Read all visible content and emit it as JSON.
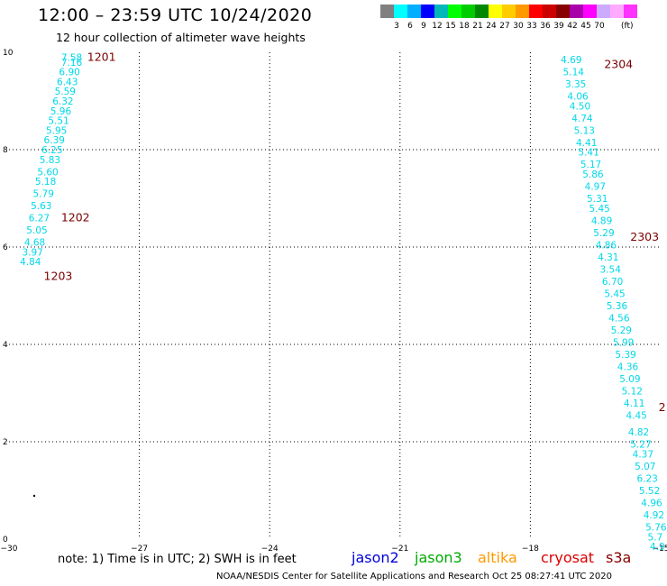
{
  "title": "12:00 – 23:59 UTC 10/24/2020",
  "subtitle": "12 hour collection of altimeter wave heights",
  "colorbar": {
    "unit": "(ft)",
    "colors": [
      "#808080",
      "#00ffff",
      "#00b0ff",
      "#0000ff",
      "#00b8b8",
      "#00ff00",
      "#00cc00",
      "#008800",
      "#ffff00",
      "#ffcc00",
      "#ff9900",
      "#ff0000",
      "#cc0000",
      "#880000",
      "#aa00aa",
      "#ff00ff",
      "#ccaaff",
      "#ffaaff",
      "#ff33ff"
    ],
    "labels": [
      "3",
      "6",
      "9",
      "12",
      "15",
      "18",
      "21",
      "24",
      "27",
      "30",
      "33",
      "36",
      "39",
      "42",
      "45",
      "70"
    ]
  },
  "chart_data": {
    "type": "scatter",
    "title": "12:00 – 23:59 UTC 10/24/2020",
    "subtitle": "12 hour collection of altimeter wave heights",
    "xlim": [
      -30,
      -15
    ],
    "ylim": [
      0,
      10
    ],
    "x_ticks": [
      "−30",
      "−27",
      "−24",
      "−21",
      "−18",
      "−15"
    ],
    "y_ticks": [
      "0",
      "2",
      "4",
      "6",
      "8",
      "10"
    ],
    "grid": true,
    "track_labels": [
      {
        "text": "1201",
        "x": -28.2,
        "y": 9.9
      },
      {
        "text": "1202",
        "x": -28.8,
        "y": 6.6
      },
      {
        "text": "1203",
        "x": -29.2,
        "y": 5.4
      },
      {
        "text": "2304",
        "x": -16.3,
        "y": 9.75
      },
      {
        "text": "2303",
        "x": -15.7,
        "y": 6.2
      },
      {
        "text": "2",
        "x": -15.05,
        "y": 2.7
      }
    ],
    "series": [
      {
        "color": "#00d8e8",
        "points": [
          {
            "x": -28.8,
            "y": 9.9,
            "label": "7.58"
          },
          {
            "x": -28.8,
            "y": 9.8,
            "label": "7.16"
          },
          {
            "x": -28.85,
            "y": 9.6,
            "label": "6.90"
          },
          {
            "x": -28.9,
            "y": 9.4,
            "label": "6.43"
          },
          {
            "x": -28.95,
            "y": 9.2,
            "label": "5.59"
          },
          {
            "x": -29.0,
            "y": 9.0,
            "label": "6.32"
          },
          {
            "x": -29.05,
            "y": 8.8,
            "label": "5.96"
          },
          {
            "x": -29.1,
            "y": 8.6,
            "label": "5.51"
          },
          {
            "x": -29.15,
            "y": 8.4,
            "label": "5.95"
          },
          {
            "x": -29.2,
            "y": 8.2,
            "label": "6.39"
          },
          {
            "x": -29.25,
            "y": 8.0,
            "label": "6.25"
          },
          {
            "x": -29.3,
            "y": 7.8,
            "label": "5.83"
          },
          {
            "x": -29.35,
            "y": 7.55,
            "label": "5.60"
          },
          {
            "x": -29.4,
            "y": 7.35,
            "label": "5.18"
          },
          {
            "x": -29.45,
            "y": 7.1,
            "label": "5.79"
          },
          {
            "x": -29.5,
            "y": 6.85,
            "label": "5.63"
          },
          {
            "x": -29.55,
            "y": 6.6,
            "label": "6.27"
          },
          {
            "x": -29.6,
            "y": 6.35,
            "label": "5.05"
          },
          {
            "x": -29.65,
            "y": 6.1,
            "label": "4.68"
          },
          {
            "x": -29.7,
            "y": 5.9,
            "label": "3.97"
          },
          {
            "x": -29.75,
            "y": 5.7,
            "label": "4.84"
          },
          {
            "x": -17.3,
            "y": 9.85,
            "label": "4.69"
          },
          {
            "x": -17.25,
            "y": 9.6,
            "label": "5.14"
          },
          {
            "x": -17.2,
            "y": 9.35,
            "label": "3.35"
          },
          {
            "x": -17.15,
            "y": 9.1,
            "label": "4.06"
          },
          {
            "x": -17.1,
            "y": 8.9,
            "label": "4.50"
          },
          {
            "x": -17.05,
            "y": 8.65,
            "label": "4.74"
          },
          {
            "x": -17.0,
            "y": 8.4,
            "label": "5.13"
          },
          {
            "x": -16.95,
            "y": 8.15,
            "label": "4.41"
          },
          {
            "x": -16.9,
            "y": 7.95,
            "label": "5.41"
          },
          {
            "x": -16.85,
            "y": 7.7,
            "label": "5.17"
          },
          {
            "x": -16.8,
            "y": 7.5,
            "label": "5.86"
          },
          {
            "x": -16.75,
            "y": 7.25,
            "label": "4.97"
          },
          {
            "x": -16.7,
            "y": 7.0,
            "label": "5.31"
          },
          {
            "x": -16.65,
            "y": 6.8,
            "label": "5.45"
          },
          {
            "x": -16.6,
            "y": 6.55,
            "label": "4.89"
          },
          {
            "x": -16.55,
            "y": 6.3,
            "label": "5.29"
          },
          {
            "x": -16.5,
            "y": 6.05,
            "label": "4.86"
          },
          {
            "x": -16.45,
            "y": 5.8,
            "label": "4.31"
          },
          {
            "x": -16.4,
            "y": 5.55,
            "label": "3.54"
          },
          {
            "x": -16.35,
            "y": 5.3,
            "label": "6.70"
          },
          {
            "x": -16.3,
            "y": 5.05,
            "label": "5.45"
          },
          {
            "x": -16.25,
            "y": 4.8,
            "label": "5.36"
          },
          {
            "x": -16.2,
            "y": 4.55,
            "label": "4.56"
          },
          {
            "x": -16.15,
            "y": 4.3,
            "label": "5.29"
          },
          {
            "x": -16.1,
            "y": 4.05,
            "label": "5.99"
          },
          {
            "x": -16.05,
            "y": 3.8,
            "label": "5.39"
          },
          {
            "x": -16.0,
            "y": 3.55,
            "label": "4.36"
          },
          {
            "x": -15.95,
            "y": 3.3,
            "label": "5.09"
          },
          {
            "x": -15.9,
            "y": 3.05,
            "label": "5.12"
          },
          {
            "x": -15.85,
            "y": 2.8,
            "label": "4.11"
          },
          {
            "x": -15.8,
            "y": 2.55,
            "label": "4.45"
          },
          {
            "x": -15.75,
            "y": 2.2,
            "label": "4.82"
          },
          {
            "x": -15.7,
            "y": 1.95,
            "label": "5.27"
          },
          {
            "x": -15.65,
            "y": 1.75,
            "label": "4.37"
          },
          {
            "x": -15.6,
            "y": 1.5,
            "label": "5.07"
          },
          {
            "x": -15.55,
            "y": 1.25,
            "label": "6.23"
          },
          {
            "x": -15.5,
            "y": 1.0,
            "label": "5.52"
          },
          {
            "x": -15.45,
            "y": 0.75,
            "label": "4.96"
          },
          {
            "x": -15.4,
            "y": 0.5,
            "label": "4.92"
          },
          {
            "x": -15.35,
            "y": 0.25,
            "label": "5.76"
          },
          {
            "x": -15.3,
            "y": 0.05,
            "label": "5.7"
          },
          {
            "x": -15.25,
            "y": -0.15,
            "label": "4.9"
          }
        ]
      }
    ]
  },
  "footer": {
    "note": "note:  1) Time is in UTC;  2) SWH is in feet",
    "missions": [
      {
        "name": "jason2",
        "color": "#0000dd"
      },
      {
        "name": "jason3",
        "color": "#00aa00"
      },
      {
        "name": "altika",
        "color": "#ff9900"
      },
      {
        "name": "cryosat",
        "color": "#dd0000"
      },
      {
        "name": "s3a",
        "color": "#880000"
      }
    ],
    "credit": "NOAA/NESDIS Center for Satellite Applications and Research     Oct 25 08:27:41 UTC 2020"
  }
}
